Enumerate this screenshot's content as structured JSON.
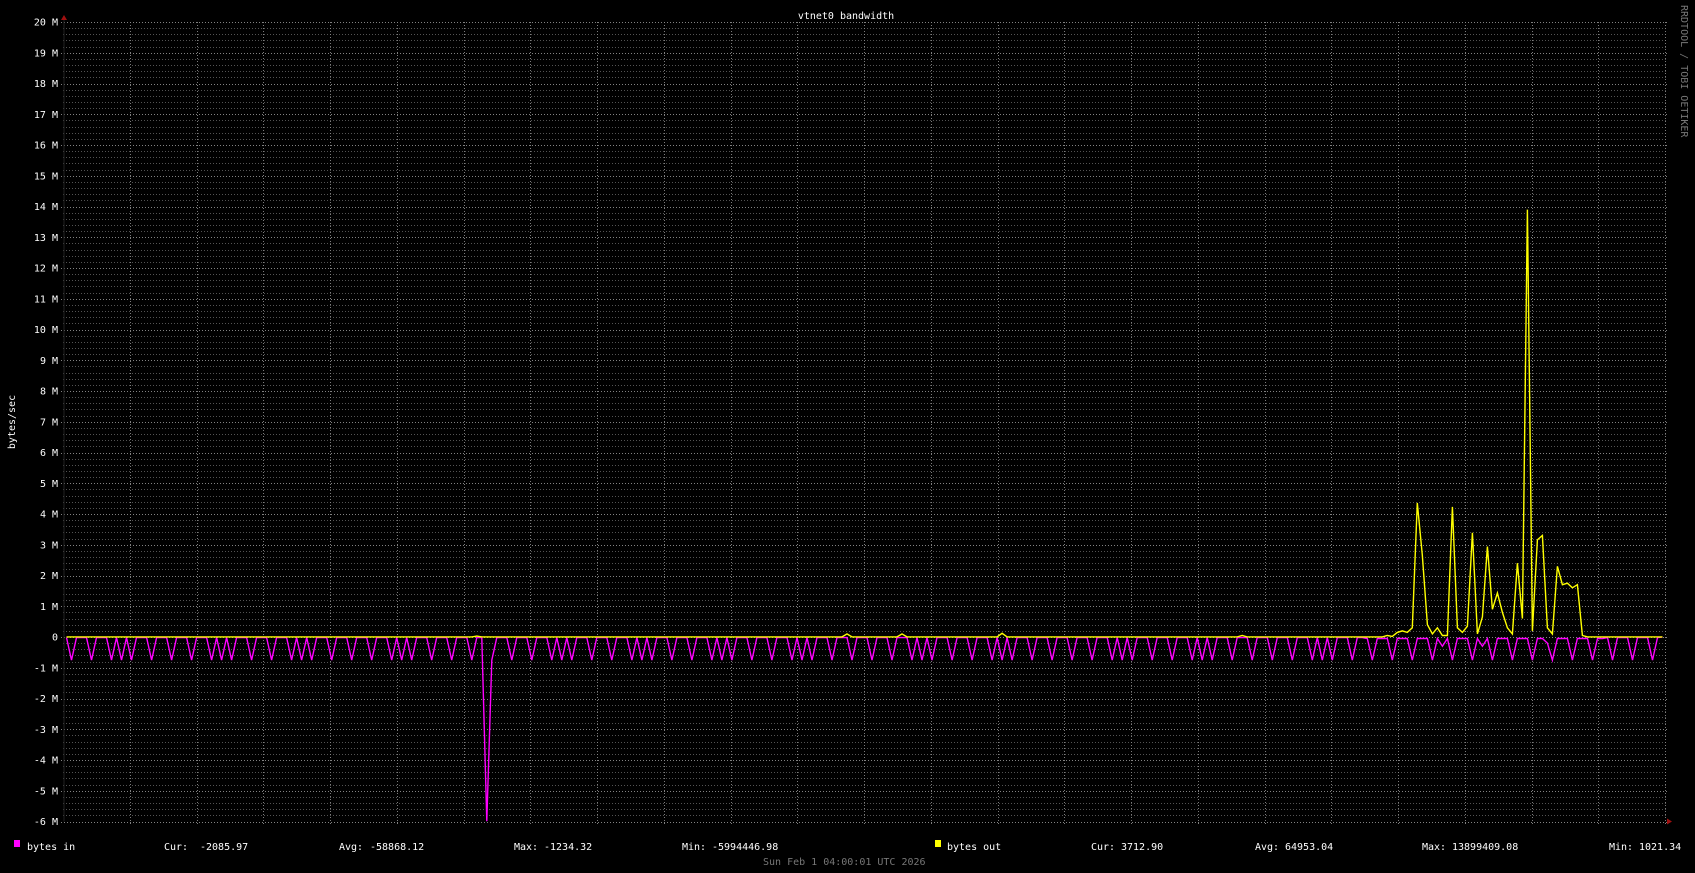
{
  "chart_data": {
    "type": "line",
    "title": "vtnet0 bandwidth",
    "ylabel": "bytes/sec",
    "watermark": "RRDTOOL / TOBI OETIKER",
    "timestamp": "Sun Feb  1 04:00:01 UTC 2026",
    "unit": "M",
    "ylim": [
      -6,
      20
    ],
    "y_major_step": 1,
    "y_minor_step": 0.2,
    "y_ticks": [
      "20 M",
      "19 M",
      "18 M",
      "17 M",
      "16 M",
      "15 M",
      "14 M",
      "13 M",
      "12 M",
      "11 M",
      "10 M",
      "9 M",
      "8 M",
      "7 M",
      "6 M",
      "5 M",
      "4 M",
      "3 M",
      "2 M",
      "1 M",
      "0",
      "-1 M",
      "-2 M",
      "-3 M",
      "-4 M",
      "-5 M",
      "-6 M"
    ],
    "grid": true,
    "colors": {
      "background": "#000000",
      "grid": "#8a8a8a",
      "axis_arrow": "#a01010",
      "bytes_in": "#ff00ff",
      "bytes_out": "#ffff00"
    },
    "series": [
      {
        "name": "bytes in",
        "legend": {
          "cur_label": "Cur:",
          "cur": "-2085.97",
          "avg_label": "Avg:",
          "avg": "-58868.12",
          "max_label": "Max:",
          "max": "-1234.32",
          "min_label": "Min:",
          "min": "-5994446.98"
        },
        "values": [
          -0.02,
          -0.75,
          -0.02,
          -0.02,
          -0.02,
          -0.75,
          -0.02,
          -0.02,
          -0.02,
          -0.75,
          -0.02,
          -0.75,
          -0.02,
          -0.75,
          -0.02,
          -0.02,
          -0.02,
          -0.75,
          -0.02,
          -0.02,
          -0.02,
          -0.75,
          -0.02,
          -0.02,
          -0.02,
          -0.75,
          -0.02,
          -0.02,
          -0.02,
          -0.75,
          -0.02,
          -0.75,
          -0.02,
          -0.75,
          -0.02,
          -0.02,
          -0.02,
          -0.75,
          -0.02,
          -0.02,
          -0.02,
          -0.75,
          -0.02,
          -0.02,
          -0.02,
          -0.75,
          -0.02,
          -0.75,
          -0.02,
          -0.75,
          -0.02,
          -0.02,
          -0.02,
          -0.75,
          -0.02,
          -0.02,
          -0.02,
          -0.75,
          -0.02,
          -0.02,
          -0.02,
          -0.75,
          -0.02,
          -0.02,
          -0.02,
          -0.75,
          -0.02,
          -0.75,
          -0.02,
          -0.75,
          -0.02,
          -0.02,
          -0.02,
          -0.75,
          -0.02,
          -0.02,
          -0.02,
          -0.75,
          -0.02,
          -0.02,
          -0.02,
          -0.75,
          -0.02,
          -0.02,
          -5.99,
          -0.75,
          -0.02,
          -0.02,
          -0.02,
          -0.75,
          -0.02,
          -0.02,
          -0.02,
          -0.75,
          -0.02,
          -0.02,
          -0.02,
          -0.75,
          -0.02,
          -0.75,
          -0.02,
          -0.75,
          -0.02,
          -0.02,
          -0.02,
          -0.75,
          -0.02,
          -0.02,
          -0.02,
          -0.75,
          -0.02,
          -0.02,
          -0.02,
          -0.75,
          -0.02,
          -0.75,
          -0.02,
          -0.75,
          -0.02,
          -0.02,
          -0.02,
          -0.75,
          -0.02,
          -0.02,
          -0.02,
          -0.75,
          -0.02,
          -0.02,
          -0.02,
          -0.75,
          -0.02,
          -0.75,
          -0.02,
          -0.75,
          -0.02,
          -0.02,
          -0.02,
          -0.75,
          -0.02,
          -0.02,
          -0.02,
          -0.75,
          -0.02,
          -0.02,
          -0.02,
          -0.75,
          -0.02,
          -0.75,
          -0.02,
          -0.75,
          -0.02,
          -0.02,
          -0.02,
          -0.75,
          -0.02,
          -0.02,
          -0.02,
          -0.75,
          -0.02,
          -0.02,
          -0.02,
          -0.75,
          -0.02,
          -0.02,
          -0.02,
          -0.75,
          -0.02,
          -0.02,
          -0.02,
          -0.75,
          -0.02,
          -0.75,
          -0.02,
          -0.75,
          -0.02,
          -0.02,
          -0.02,
          -0.75,
          -0.02,
          -0.02,
          -0.02,
          -0.75,
          -0.02,
          -0.02,
          -0.02,
          -0.75,
          -0.02,
          -0.75,
          -0.02,
          -0.75,
          -0.02,
          -0.02,
          -0.02,
          -0.75,
          -0.02,
          -0.02,
          -0.02,
          -0.75,
          -0.02,
          -0.02,
          -0.02,
          -0.75,
          -0.02,
          -0.02,
          -0.02,
          -0.75,
          -0.02,
          -0.02,
          -0.02,
          -0.75,
          -0.02,
          -0.75,
          -0.02,
          -0.75,
          -0.02,
          -0.02,
          -0.02,
          -0.75,
          -0.02,
          -0.02,
          -0.02,
          -0.75,
          -0.02,
          -0.02,
          -0.02,
          -0.75,
          -0.02,
          -0.75,
          -0.02,
          -0.75,
          -0.02,
          -0.02,
          -0.02,
          -0.75,
          -0.02,
          -0.02,
          -0.02,
          -0.75,
          -0.02,
          -0.02,
          -0.02,
          -0.75,
          -0.02,
          -0.02,
          -0.02,
          -0.75,
          -0.02,
          -0.02,
          -0.02,
          -0.75,
          -0.02,
          -0.75,
          -0.02,
          -0.75,
          -0.02,
          -0.02,
          -0.02,
          -0.75,
          -0.02,
          -0.02,
          -0.05,
          -0.75,
          -0.05,
          -0.05,
          -0.05,
          -0.75,
          -0.05,
          -0.05,
          -0.05,
          -0.75,
          -0.05,
          -0.05,
          -0.05,
          -0.75,
          -0.05,
          -0.3,
          -0.05,
          -0.75,
          -0.05,
          -0.05,
          -0.05,
          -0.75,
          -0.05,
          -0.3,
          -0.05,
          -0.75,
          -0.05,
          -0.05,
          -0.05,
          -0.75,
          -0.05,
          -0.05,
          -0.05,
          -0.75,
          -0.05,
          -0.05,
          -0.2,
          -0.75,
          -0.05,
          -0.05,
          -0.05,
          -0.75,
          -0.05,
          -0.05,
          -0.05,
          -0.75,
          -0.05,
          -0.05,
          -0.02,
          -0.75,
          -0.02,
          -0.02,
          -0.02,
          -0.75,
          -0.02,
          -0.02,
          -0.02,
          -0.75,
          -0.02,
          -0.002
        ]
      },
      {
        "name": "bytes out",
        "legend": {
          "cur_label": "Cur:",
          "cur": "3712.90",
          "avg_label": "Avg:",
          "avg": "64953.04",
          "max_label": "Max:",
          "max": "13899409.08",
          "min_label": "Min:",
          "min": "1021.34"
        },
        "values": [
          0.004,
          0.004,
          0.004,
          0.004,
          0.004,
          0.004,
          0.004,
          0.004,
          0.004,
          0.004,
          0.004,
          0.004,
          0.004,
          0.004,
          0.004,
          0.004,
          0.004,
          0.004,
          0.004,
          0.004,
          0.004,
          0.004,
          0.004,
          0.004,
          0.004,
          0.004,
          0.004,
          0.004,
          0.004,
          0.004,
          0.004,
          0.004,
          0.004,
          0.004,
          0.004,
          0.004,
          0.004,
          0.004,
          0.004,
          0.004,
          0.004,
          0.004,
          0.004,
          0.004,
          0.004,
          0.004,
          0.004,
          0.004,
          0.004,
          0.004,
          0.004,
          0.004,
          0.004,
          0.004,
          0.004,
          0.004,
          0.004,
          0.004,
          0.004,
          0.004,
          0.004,
          0.004,
          0.004,
          0.004,
          0.004,
          0.004,
          0.004,
          0.004,
          0.004,
          0.004,
          0.004,
          0.004,
          0.004,
          0.004,
          0.004,
          0.004,
          0.004,
          0.004,
          0.004,
          0.004,
          0.004,
          0.004,
          0.03,
          0.004,
          0.004,
          0.004,
          0.004,
          0.004,
          0.004,
          0.004,
          0.004,
          0.004,
          0.004,
          0.004,
          0.004,
          0.004,
          0.004,
          0.004,
          0.004,
          0.004,
          0.004,
          0.004,
          0.004,
          0.004,
          0.004,
          0.004,
          0.004,
          0.004,
          0.004,
          0.004,
          0.004,
          0.004,
          0.004,
          0.004,
          0.004,
          0.004,
          0.004,
          0.004,
          0.004,
          0.004,
          0.004,
          0.004,
          0.004,
          0.004,
          0.004,
          0.004,
          0.004,
          0.004,
          0.004,
          0.004,
          0.004,
          0.004,
          0.004,
          0.004,
          0.004,
          0.004,
          0.004,
          0.004,
          0.004,
          0.004,
          0.004,
          0.004,
          0.004,
          0.004,
          0.004,
          0.004,
          0.004,
          0.004,
          0.004,
          0.004,
          0.004,
          0.004,
          0.004,
          0.004,
          0.004,
          0.004,
          0.1,
          0.004,
          0.004,
          0.004,
          0.004,
          0.004,
          0.004,
          0.004,
          0.004,
          0.004,
          0.004,
          0.1,
          0.004,
          0.004,
          0.004,
          0.004,
          0.004,
          0.004,
          0.004,
          0.004,
          0.004,
          0.004,
          0.004,
          0.004,
          0.004,
          0.004,
          0.004,
          0.004,
          0.004,
          0.004,
          0.004,
          0.12,
          0.004,
          0.004,
          0.004,
          0.004,
          0.004,
          0.004,
          0.004,
          0.004,
          0.004,
          0.004,
          0.004,
          0.004,
          0.004,
          0.004,
          0.004,
          0.004,
          0.004,
          0.004,
          0.004,
          0.004,
          0.004,
          0.004,
          0.004,
          0.004,
          0.004,
          0.004,
          0.004,
          0.004,
          0.004,
          0.004,
          0.004,
          0.004,
          0.004,
          0.004,
          0.004,
          0.004,
          0.004,
          0.004,
          0.004,
          0.004,
          0.004,
          0.004,
          0.004,
          0.004,
          0.004,
          0.004,
          0.004,
          0.05,
          0.004,
          0.004,
          0.004,
          0.004,
          0.004,
          0.004,
          0.004,
          0.004,
          0.004,
          0.004,
          0.004,
          0.004,
          0.004,
          0.004,
          0.004,
          0.004,
          0.004,
          0.004,
          0.004,
          0.004,
          0.004,
          0.004,
          0.004,
          0.004,
          0.004,
          0.004,
          0.004,
          0.004,
          0.05,
          0.02,
          0.15,
          0.2,
          0.15,
          0.3,
          4.36,
          2.67,
          0.4,
          0.1,
          0.3,
          0.05,
          0.05,
          4.23,
          0.3,
          0.15,
          0.35,
          3.39,
          0.1,
          0.65,
          2.94,
          0.9,
          1.43,
          0.8,
          0.3,
          0.1,
          2.4,
          0.6,
          13.9,
          0.2,
          3.16,
          3.3,
          0.3,
          0.1,
          2.3,
          1.7,
          1.75,
          1.6,
          1.7,
          0.05,
          0.004,
          0.004,
          0.004,
          0.004,
          0.004,
          0.004,
          0.004,
          0.004,
          0.004,
          0.004,
          0.004,
          0.004,
          0.004,
          0.004,
          0.004,
          0.0037
        ]
      }
    ]
  }
}
